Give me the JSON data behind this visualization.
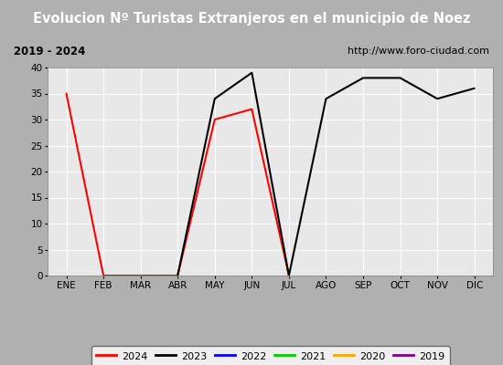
{
  "title": "Evolucion Nº Turistas Extranjeros en el municipio de Noez",
  "subtitle_left": "2019 - 2024",
  "subtitle_right": "http://www.foro-ciudad.com",
  "months": [
    "ENE",
    "FEB",
    "MAR",
    "ABR",
    "MAY",
    "JUN",
    "JUL",
    "AGO",
    "SEP",
    "OCT",
    "NOV",
    "DIC"
  ],
  "ylim": [
    0,
    40
  ],
  "yticks": [
    0,
    5,
    10,
    15,
    20,
    25,
    30,
    35,
    40
  ],
  "series": {
    "2024": {
      "color": "#ff0000",
      "data": [
        35,
        0,
        0,
        0,
        30,
        32,
        0,
        null,
        null,
        null,
        null,
        null
      ]
    },
    "2023": {
      "color": "#000000",
      "data": [
        null,
        null,
        null,
        0,
        34,
        39,
        0,
        34,
        38,
        38,
        34,
        36
      ]
    },
    "2022": {
      "color": "#0000ff",
      "data": [
        null,
        null,
        null,
        null,
        null,
        null,
        null,
        null,
        null,
        null,
        null,
        null
      ]
    },
    "2021": {
      "color": "#00cc00",
      "data": [
        null,
        null,
        null,
        null,
        null,
        null,
        null,
        null,
        null,
        null,
        null,
        null
      ]
    },
    "2020": {
      "color": "#ffa500",
      "data": [
        null,
        null,
        null,
        null,
        null,
        null,
        null,
        null,
        null,
        null,
        null,
        null
      ]
    },
    "2019": {
      "color": "#800080",
      "data": [
        null,
        null,
        null,
        null,
        null,
        null,
        null,
        null,
        null,
        null,
        null,
        null
      ]
    }
  },
  "legend_order": [
    "2024",
    "2023",
    "2022",
    "2021",
    "2020",
    "2019"
  ],
  "title_bg_color": "#4472c4",
  "title_text_color": "#ffffff",
  "subtitle_bg_color": "#f0f0f0",
  "plot_bg_color": "#e8e8e8",
  "grid_color": "#ffffff",
  "outer_bg_color": "#b0b0b0"
}
